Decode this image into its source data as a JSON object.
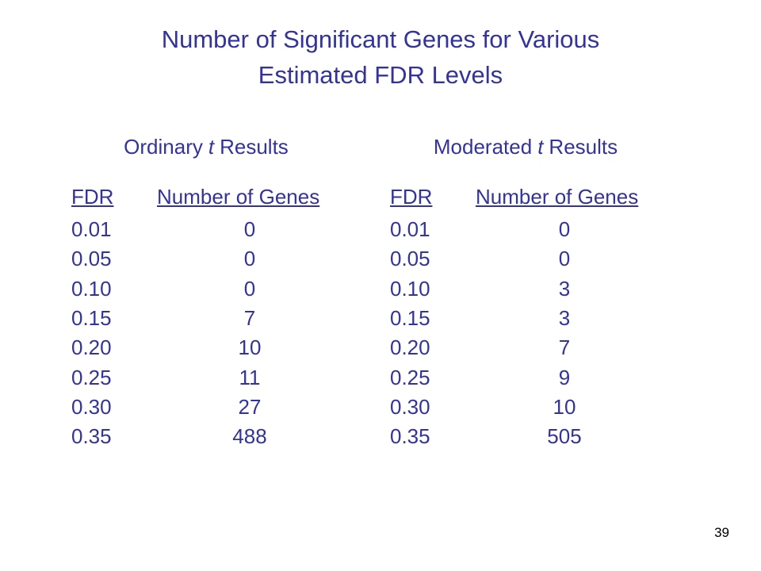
{
  "title": {
    "lines": [
      "Number of Significant Genes for Various",
      "Estimated FDR Levels"
    ]
  },
  "tables": [
    {
      "caption": {
        "before": "Ordinary",
        "italic": "t",
        "after": "Results"
      },
      "header": [
        "FDR",
        "Number of Genes"
      ],
      "rows": [
        [
          "0.01",
          "0"
        ],
        [
          "0.05",
          "0"
        ],
        [
          "0.10",
          "0"
        ],
        [
          "0.15",
          "7"
        ],
        [
          "0.20",
          "10"
        ],
        [
          "0.25",
          "11"
        ],
        [
          "0.30",
          "27"
        ],
        [
          "0.35",
          "488"
        ]
      ]
    },
    {
      "caption": {
        "before": "Moderated",
        "italic": "t",
        "after": "Results"
      },
      "header": [
        "FDR",
        "Number of Genes"
      ],
      "rows": [
        [
          "0.01",
          "0"
        ],
        [
          "0.05",
          "0"
        ],
        [
          "0.10",
          "3"
        ],
        [
          "0.15",
          "3"
        ],
        [
          "0.20",
          "7"
        ],
        [
          "0.25",
          "9"
        ],
        [
          "0.30",
          "10"
        ],
        [
          "0.35",
          "505"
        ]
      ]
    }
  ],
  "page_number": "39"
}
